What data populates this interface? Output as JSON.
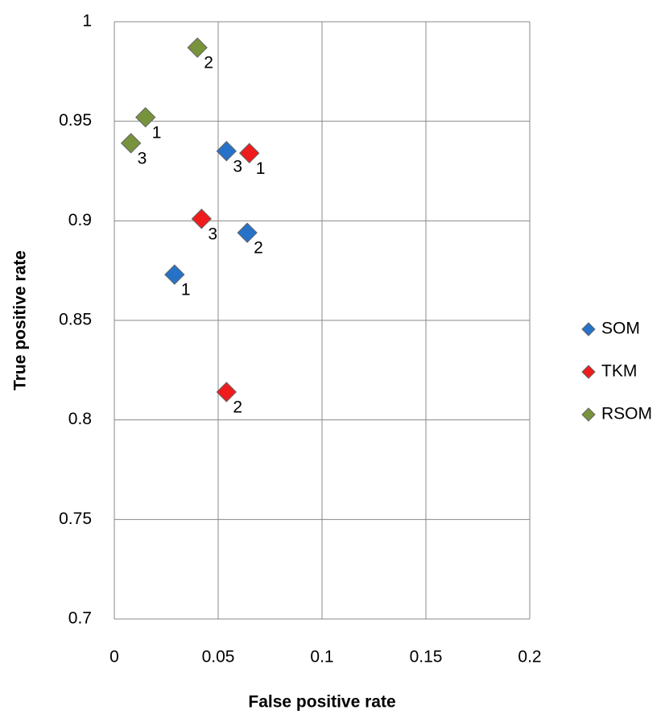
{
  "chart_data": {
    "type": "scatter",
    "x_label": "False positive rate",
    "y_label": "True positive rate",
    "xlim": [
      0,
      0.2
    ],
    "xticks": [
      0,
      0.05,
      0.1,
      0.15,
      0.2
    ],
    "ylim": [
      0.7,
      1
    ],
    "yticks": [
      0.7,
      0.75,
      0.8,
      0.85,
      0.9,
      0.95,
      1
    ],
    "grid": true,
    "legend": "right",
    "series": [
      {
        "name": "SOM",
        "color": "#2672c9",
        "x": [
          0.029,
          0.064,
          0.054
        ],
        "values": [
          0.873,
          0.894,
          0.935
        ],
        "point_labels": [
          "1",
          "2",
          "3"
        ]
      },
      {
        "name": "TKM",
        "color": "#ee1c1c",
        "x": [
          0.065,
          0.054,
          0.042
        ],
        "values": [
          0.934,
          0.814,
          0.901
        ],
        "point_labels": [
          "1",
          "2",
          "3"
        ]
      },
      {
        "name": "RSOM",
        "color": "#77933c",
        "x": [
          0.015,
          0.04,
          0.008
        ],
        "values": [
          0.952,
          0.987,
          0.939
        ],
        "point_labels": [
          "1",
          "2",
          "3"
        ]
      }
    ]
  }
}
